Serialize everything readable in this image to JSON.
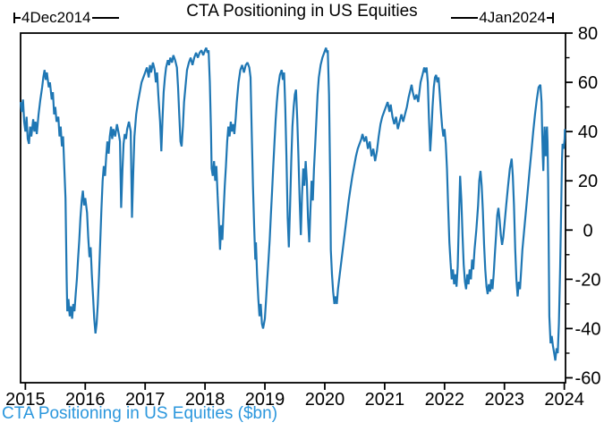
{
  "header": {
    "title": "CTA Positioning in US Equities",
    "start_date": "4Dec2014",
    "end_date": "4Jan2024"
  },
  "footer": {
    "caption": "CTA Positioning in US Equities ($bn)",
    "caption_color": "#2b97dd"
  },
  "chart_data": {
    "type": "line",
    "title": "CTA Positioning in US Equities",
    "series_name": "CTA Positioning in US Equities ($bn)",
    "xlabel": "",
    "ylabel": "",
    "grid": false,
    "legend": "none",
    "y_axis_side": "right",
    "line_color": "#1f77b4",
    "axis_color": "#000000",
    "x_ticks": [
      2015,
      2016,
      2017,
      2018,
      2019,
      2020,
      2021,
      2022,
      2023,
      2024
    ],
    "y_ticks": [
      -60,
      -40,
      -20,
      0,
      20,
      40,
      60,
      80
    ],
    "y_minor_ticks": [
      -50,
      -30,
      -10,
      10,
      30,
      50,
      70
    ],
    "xlim": [
      2014.92,
      2024.02
    ],
    "ylim": [
      -62,
      80
    ],
    "date_range": {
      "start": "4Dec2014",
      "end": "4Jan2024"
    },
    "points": [
      [
        2014.92,
        52
      ],
      [
        2014.94,
        48
      ],
      [
        2014.96,
        53
      ],
      [
        2014.98,
        44
      ],
      [
        2015.0,
        40
      ],
      [
        2015.02,
        46
      ],
      [
        2015.04,
        37
      ],
      [
        2015.06,
        35
      ],
      [
        2015.08,
        42
      ],
      [
        2015.1,
        38
      ],
      [
        2015.13,
        45
      ],
      [
        2015.15,
        40
      ],
      [
        2015.17,
        44
      ],
      [
        2015.19,
        39
      ],
      [
        2015.22,
        47
      ],
      [
        2015.25,
        53
      ],
      [
        2015.28,
        58
      ],
      [
        2015.3,
        62
      ],
      [
        2015.32,
        65
      ],
      [
        2015.34,
        61
      ],
      [
        2015.36,
        64
      ],
      [
        2015.39,
        58
      ],
      [
        2015.41,
        60
      ],
      [
        2015.44,
        53
      ],
      [
        2015.46,
        56
      ],
      [
        2015.48,
        47
      ],
      [
        2015.5,
        50
      ],
      [
        2015.52,
        44
      ],
      [
        2015.55,
        46
      ],
      [
        2015.57,
        38
      ],
      [
        2015.59,
        42
      ],
      [
        2015.61,
        34
      ],
      [
        2015.63,
        38
      ],
      [
        2015.65,
        25
      ],
      [
        2015.67,
        13
      ],
      [
        2015.68,
        -5
      ],
      [
        2015.69,
        -20
      ],
      [
        2015.7,
        -33
      ],
      [
        2015.72,
        -28
      ],
      [
        2015.74,
        -35
      ],
      [
        2015.76,
        -31
      ],
      [
        2015.78,
        -36
      ],
      [
        2015.8,
        -30
      ],
      [
        2015.82,
        -33
      ],
      [
        2015.84,
        -26
      ],
      [
        2015.86,
        -20
      ],
      [
        2015.88,
        -12
      ],
      [
        2015.9,
        -4
      ],
      [
        2015.92,
        5
      ],
      [
        2015.94,
        12
      ],
      [
        2015.96,
        16
      ],
      [
        2015.98,
        10
      ],
      [
        2016.0,
        13
      ],
      [
        2016.03,
        7
      ],
      [
        2016.05,
        -3
      ],
      [
        2016.07,
        -11
      ],
      [
        2016.09,
        -7
      ],
      [
        2016.11,
        -18
      ],
      [
        2016.13,
        -27
      ],
      [
        2016.15,
        -36
      ],
      [
        2016.17,
        -42
      ],
      [
        2016.19,
        -38
      ],
      [
        2016.21,
        -30
      ],
      [
        2016.23,
        -18
      ],
      [
        2016.25,
        -5
      ],
      [
        2016.27,
        8
      ],
      [
        2016.29,
        20
      ],
      [
        2016.31,
        26
      ],
      [
        2016.33,
        22
      ],
      [
        2016.35,
        30
      ],
      [
        2016.37,
        36
      ],
      [
        2016.39,
        31
      ],
      [
        2016.41,
        38
      ],
      [
        2016.43,
        42
      ],
      [
        2016.45,
        37
      ],
      [
        2016.47,
        41
      ],
      [
        2016.5,
        38
      ],
      [
        2016.53,
        43
      ],
      [
        2016.56,
        39
      ],
      [
        2016.58,
        36
      ],
      [
        2016.6,
        9
      ],
      [
        2016.62,
        24
      ],
      [
        2016.64,
        35
      ],
      [
        2016.66,
        39
      ],
      [
        2016.68,
        37
      ],
      [
        2016.7,
        41
      ],
      [
        2016.73,
        44
      ],
      [
        2016.76,
        40
      ],
      [
        2016.78,
        5
      ],
      [
        2016.8,
        22
      ],
      [
        2016.82,
        38
      ],
      [
        2016.85,
        47
      ],
      [
        2016.88,
        52
      ],
      [
        2016.91,
        56
      ],
      [
        2016.94,
        60
      ],
      [
        2016.97,
        62
      ],
      [
        2017.0,
        64
      ],
      [
        2017.03,
        66
      ],
      [
        2017.06,
        62
      ],
      [
        2017.08,
        67
      ],
      [
        2017.1,
        64
      ],
      [
        2017.13,
        68
      ],
      [
        2017.16,
        65
      ],
      [
        2017.18,
        60
      ],
      [
        2017.2,
        64
      ],
      [
        2017.22,
        55
      ],
      [
        2017.25,
        44
      ],
      [
        2017.27,
        32
      ],
      [
        2017.29,
        45
      ],
      [
        2017.31,
        56
      ],
      [
        2017.33,
        62
      ],
      [
        2017.35,
        66
      ],
      [
        2017.38,
        69
      ],
      [
        2017.4,
        67
      ],
      [
        2017.42,
        70
      ],
      [
        2017.45,
        68
      ],
      [
        2017.47,
        71
      ],
      [
        2017.5,
        69
      ],
      [
        2017.53,
        66
      ],
      [
        2017.55,
        58
      ],
      [
        2017.57,
        47
      ],
      [
        2017.59,
        36
      ],
      [
        2017.61,
        34
      ],
      [
        2017.63,
        42
      ],
      [
        2017.65,
        52
      ],
      [
        2017.68,
        60
      ],
      [
        2017.7,
        65
      ],
      [
        2017.73,
        68
      ],
      [
        2017.76,
        70
      ],
      [
        2017.79,
        67
      ],
      [
        2017.82,
        70
      ],
      [
        2017.85,
        72
      ],
      [
        2017.88,
        70
      ],
      [
        2017.91,
        72
      ],
      [
        2017.94,
        73
      ],
      [
        2017.97,
        71
      ],
      [
        2018.0,
        73
      ],
      [
        2018.02,
        74
      ],
      [
        2018.04,
        72
      ],
      [
        2018.06,
        73
      ],
      [
        2018.08,
        60
      ],
      [
        2018.1,
        40
      ],
      [
        2018.11,
        25
      ],
      [
        2018.13,
        22
      ],
      [
        2018.15,
        28
      ],
      [
        2018.17,
        20
      ],
      [
        2018.19,
        26
      ],
      [
        2018.21,
        14
      ],
      [
        2018.23,
        4
      ],
      [
        2018.25,
        -8
      ],
      [
        2018.27,
        2
      ],
      [
        2018.29,
        -4
      ],
      [
        2018.31,
        8
      ],
      [
        2018.33,
        18
      ],
      [
        2018.35,
        26
      ],
      [
        2018.37,
        36
      ],
      [
        2018.39,
        42
      ],
      [
        2018.41,
        38
      ],
      [
        2018.43,
        44
      ],
      [
        2018.45,
        40
      ],
      [
        2018.47,
        43
      ],
      [
        2018.49,
        39
      ],
      [
        2018.51,
        45
      ],
      [
        2018.53,
        52
      ],
      [
        2018.56,
        60
      ],
      [
        2018.59,
        65
      ],
      [
        2018.62,
        67
      ],
      [
        2018.65,
        64
      ],
      [
        2018.68,
        67
      ],
      [
        2018.71,
        68
      ],
      [
        2018.74,
        66
      ],
      [
        2018.76,
        62
      ],
      [
        2018.78,
        40
      ],
      [
        2018.8,
        18
      ],
      [
        2018.82,
        2
      ],
      [
        2018.84,
        -12
      ],
      [
        2018.85,
        -5
      ],
      [
        2018.87,
        -18
      ],
      [
        2018.89,
        -28
      ],
      [
        2018.91,
        -35
      ],
      [
        2018.93,
        -30
      ],
      [
        2018.95,
        -38
      ],
      [
        2018.97,
        -40
      ],
      [
        2019.0,
        -36
      ],
      [
        2019.02,
        -28
      ],
      [
        2019.04,
        -20
      ],
      [
        2019.06,
        -12
      ],
      [
        2019.08,
        -4
      ],
      [
        2019.1,
        6
      ],
      [
        2019.12,
        16
      ],
      [
        2019.14,
        26
      ],
      [
        2019.16,
        36
      ],
      [
        2019.18,
        45
      ],
      [
        2019.2,
        52
      ],
      [
        2019.22,
        58
      ],
      [
        2019.25,
        63
      ],
      [
        2019.28,
        65
      ],
      [
        2019.3,
        61
      ],
      [
        2019.32,
        64
      ],
      [
        2019.34,
        50
      ],
      [
        2019.36,
        30
      ],
      [
        2019.38,
        5
      ],
      [
        2019.4,
        -7
      ],
      [
        2019.42,
        10
      ],
      [
        2019.44,
        28
      ],
      [
        2019.46,
        42
      ],
      [
        2019.48,
        50
      ],
      [
        2019.5,
        55
      ],
      [
        2019.52,
        57
      ],
      [
        2019.54,
        45
      ],
      [
        2019.56,
        30
      ],
      [
        2019.58,
        12
      ],
      [
        2019.6,
        -2
      ],
      [
        2019.62,
        14
      ],
      [
        2019.64,
        25
      ],
      [
        2019.66,
        18
      ],
      [
        2019.68,
        28
      ],
      [
        2019.7,
        20
      ],
      [
        2019.72,
        5
      ],
      [
        2019.74,
        -5
      ],
      [
        2019.76,
        8
      ],
      [
        2019.78,
        20
      ],
      [
        2019.8,
        12
      ],
      [
        2019.82,
        25
      ],
      [
        2019.84,
        35
      ],
      [
        2019.86,
        45
      ],
      [
        2019.88,
        55
      ],
      [
        2019.9,
        62
      ],
      [
        2019.93,
        67
      ],
      [
        2019.96,
        70
      ],
      [
        2019.99,
        72
      ],
      [
        2020.02,
        74
      ],
      [
        2020.04,
        72
      ],
      [
        2020.05,
        73
      ],
      [
        2020.07,
        55
      ],
      [
        2020.09,
        20
      ],
      [
        2020.1,
        -8
      ],
      [
        2020.12,
        -18
      ],
      [
        2020.14,
        -25
      ],
      [
        2020.16,
        -30
      ],
      [
        2020.18,
        -27
      ],
      [
        2020.2,
        -30
      ],
      [
        2020.22,
        -24
      ],
      [
        2020.25,
        -18
      ],
      [
        2020.28,
        -12
      ],
      [
        2020.31,
        -6
      ],
      [
        2020.34,
        0
      ],
      [
        2020.37,
        6
      ],
      [
        2020.4,
        12
      ],
      [
        2020.43,
        17
      ],
      [
        2020.46,
        22
      ],
      [
        2020.49,
        26
      ],
      [
        2020.52,
        30
      ],
      [
        2020.55,
        33
      ],
      [
        2020.58,
        35
      ],
      [
        2020.61,
        37
      ],
      [
        2020.63,
        39
      ],
      [
        2020.66,
        36
      ],
      [
        2020.69,
        38
      ],
      [
        2020.72,
        33
      ],
      [
        2020.75,
        36
      ],
      [
        2020.78,
        30
      ],
      [
        2020.81,
        33
      ],
      [
        2020.84,
        28
      ],
      [
        2020.87,
        32
      ],
      [
        2020.9,
        38
      ],
      [
        2020.93,
        43
      ],
      [
        2020.96,
        46
      ],
      [
        2020.99,
        48
      ],
      [
        2021.02,
        50
      ],
      [
        2021.05,
        52
      ],
      [
        2021.08,
        48
      ],
      [
        2021.1,
        51
      ],
      [
        2021.13,
        46
      ],
      [
        2021.16,
        43
      ],
      [
        2021.19,
        46
      ],
      [
        2021.22,
        41
      ],
      [
        2021.25,
        44
      ],
      [
        2021.28,
        47
      ],
      [
        2021.31,
        44
      ],
      [
        2021.34,
        47
      ],
      [
        2021.37,
        50
      ],
      [
        2021.4,
        54
      ],
      [
        2021.43,
        57
      ],
      [
        2021.45,
        59
      ],
      [
        2021.47,
        56
      ],
      [
        2021.5,
        53
      ],
      [
        2021.53,
        55
      ],
      [
        2021.56,
        52
      ],
      [
        2021.58,
        56
      ],
      [
        2021.6,
        60
      ],
      [
        2021.63,
        63
      ],
      [
        2021.66,
        66
      ],
      [
        2021.68,
        64
      ],
      [
        2021.7,
        66
      ],
      [
        2021.72,
        60
      ],
      [
        2021.74,
        45
      ],
      [
        2021.76,
        32
      ],
      [
        2021.78,
        40
      ],
      [
        2021.8,
        50
      ],
      [
        2021.82,
        58
      ],
      [
        2021.84,
        62
      ],
      [
        2021.86,
        63
      ],
      [
        2021.88,
        60
      ],
      [
        2021.9,
        62
      ],
      [
        2021.92,
        55
      ],
      [
        2021.94,
        48
      ],
      [
        2021.96,
        42
      ],
      [
        2021.98,
        38
      ],
      [
        2022.0,
        41
      ],
      [
        2022.02,
        35
      ],
      [
        2022.04,
        25
      ],
      [
        2022.06,
        10
      ],
      [
        2022.08,
        -5
      ],
      [
        2022.1,
        -13
      ],
      [
        2022.12,
        -20
      ],
      [
        2022.14,
        -16
      ],
      [
        2022.16,
        -22
      ],
      [
        2022.18,
        -18
      ],
      [
        2022.2,
        -23
      ],
      [
        2022.22,
        -15
      ],
      [
        2022.24,
        5
      ],
      [
        2022.26,
        22
      ],
      [
        2022.28,
        12
      ],
      [
        2022.3,
        -2
      ],
      [
        2022.32,
        -14
      ],
      [
        2022.34,
        -21
      ],
      [
        2022.36,
        -24
      ],
      [
        2022.38,
        -18
      ],
      [
        2022.4,
        -22
      ],
      [
        2022.42,
        -16
      ],
      [
        2022.44,
        -20
      ],
      [
        2022.46,
        -12
      ],
      [
        2022.48,
        -16
      ],
      [
        2022.5,
        -8
      ],
      [
        2022.53,
        0
      ],
      [
        2022.56,
        10
      ],
      [
        2022.58,
        20
      ],
      [
        2022.6,
        24
      ],
      [
        2022.62,
        18
      ],
      [
        2022.64,
        8
      ],
      [
        2022.66,
        -6
      ],
      [
        2022.68,
        -16
      ],
      [
        2022.7,
        -23
      ],
      [
        2022.72,
        -26
      ],
      [
        2022.74,
        -22
      ],
      [
        2022.76,
        -25
      ],
      [
        2022.78,
        -20
      ],
      [
        2022.8,
        -24
      ],
      [
        2022.82,
        -18
      ],
      [
        2022.84,
        -10
      ],
      [
        2022.86,
        -2
      ],
      [
        2022.88,
        6
      ],
      [
        2022.9,
        9
      ],
      [
        2022.92,
        4
      ],
      [
        2022.94,
        -2
      ],
      [
        2022.96,
        -6
      ],
      [
        2022.98,
        -3
      ],
      [
        2023.0,
        2
      ],
      [
        2023.03,
        10
      ],
      [
        2023.06,
        18
      ],
      [
        2023.09,
        25
      ],
      [
        2023.12,
        29
      ],
      [
        2023.14,
        22
      ],
      [
        2023.16,
        10
      ],
      [
        2023.18,
        -8
      ],
      [
        2023.2,
        -20
      ],
      [
        2023.22,
        -27
      ],
      [
        2023.24,
        -21
      ],
      [
        2023.26,
        -24
      ],
      [
        2023.28,
        -16
      ],
      [
        2023.3,
        -8
      ],
      [
        2023.33,
        0
      ],
      [
        2023.36,
        8
      ],
      [
        2023.39,
        16
      ],
      [
        2023.42,
        24
      ],
      [
        2023.45,
        32
      ],
      [
        2023.48,
        40
      ],
      [
        2023.51,
        47
      ],
      [
        2023.54,
        53
      ],
      [
        2023.57,
        58
      ],
      [
        2023.6,
        59
      ],
      [
        2023.62,
        52
      ],
      [
        2023.63,
        40
      ],
      [
        2023.64,
        30
      ],
      [
        2023.65,
        24
      ],
      [
        2023.66,
        34
      ],
      [
        2023.67,
        42
      ],
      [
        2023.68,
        36
      ],
      [
        2023.69,
        30
      ],
      [
        2023.7,
        38
      ],
      [
        2023.71,
        42
      ],
      [
        2023.72,
        36
      ],
      [
        2023.73,
        20
      ],
      [
        2023.74,
        -10
      ],
      [
        2023.75,
        -35
      ],
      [
        2023.77,
        -46
      ],
      [
        2023.79,
        -43
      ],
      [
        2023.81,
        -47
      ],
      [
        2023.83,
        -50
      ],
      [
        2023.85,
        -53
      ],
      [
        2023.87,
        -48
      ],
      [
        2023.89,
        -50
      ],
      [
        2023.91,
        -38
      ],
      [
        2023.93,
        -15
      ],
      [
        2023.95,
        12
      ],
      [
        2023.96,
        28
      ],
      [
        2023.97,
        35
      ],
      [
        2023.99,
        33
      ],
      [
        2024.005,
        37
      ],
      [
        2024.01,
        41
      ]
    ]
  }
}
